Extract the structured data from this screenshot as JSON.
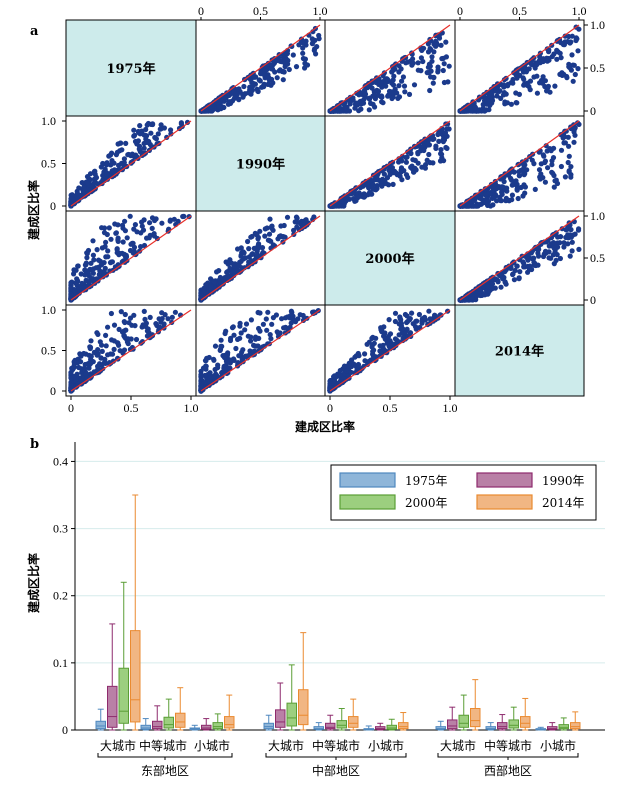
{
  "chart_data": [
    {
      "panel": "a",
      "type": "scatter",
      "ylabel": "建成区比率",
      "xlabel": "建成区比率",
      "variables": [
        "1975年",
        "1990年",
        "2000年",
        "2014年"
      ],
      "ticks": [
        "0",
        "0.5",
        "1.0"
      ],
      "tick_values": [
        0,
        0.5,
        1
      ],
      "xlim": [
        0,
        1
      ],
      "ylim": [
        0,
        1
      ],
      "colors": {
        "point": "#1b3a8c",
        "diag_bg": "#cdebeb",
        "line": "#e8302a"
      },
      "pairs_note": "matrix of pairwise scatter plots with y=x reference line"
    },
    {
      "panel": "b",
      "type": "box",
      "ylabel": "建成区比率",
      "yticks": [
        "0",
        "0.1",
        "0.2",
        "0.3",
        "0.4"
      ],
      "ytick_values": [
        0,
        0.1,
        0.2,
        0.3,
        0.4
      ],
      "ylim": [
        0,
        0.42
      ],
      "regions": [
        "东部地区",
        "中部地区",
        "西部地区"
      ],
      "categories": [
        "大城市",
        "中等城市",
        "小城市"
      ],
      "series": [
        {
          "name": "1975年",
          "color": "#4f88bf",
          "fill": "#8fb6d9"
        },
        {
          "name": "1990年",
          "color": "#8e2b6d",
          "fill": "#b980a6"
        },
        {
          "name": "2000年",
          "color": "#5a9e36",
          "fill": "#9ccf7f"
        },
        {
          "name": "2014年",
          "color": "#ea8a30",
          "fill": "#f1b683"
        }
      ],
      "legend_position": "top-right",
      "boxes": [
        [
          [
            0,
            0.002,
            0.006,
            0.013,
            0.031
          ],
          [
            0,
            0.004,
            0.02,
            0.065,
            0.158
          ],
          [
            0,
            0.01,
            0.028,
            0.092,
            0.22
          ],
          [
            0,
            0.012,
            0.045,
            0.148,
            0.35
          ]
        ],
        [
          [
            0,
            0.001,
            0.003,
            0.007,
            0.017
          ],
          [
            0,
            0.002,
            0.005,
            0.013,
            0.036
          ],
          [
            0,
            0.003,
            0.008,
            0.019,
            0.046
          ],
          [
            0,
            0.004,
            0.012,
            0.025,
            0.063
          ]
        ],
        [
          [
            0,
            0.0005,
            0.0015,
            0.003,
            0.007
          ],
          [
            0,
            0.001,
            0.003,
            0.007,
            0.017
          ],
          [
            0,
            0.002,
            0.005,
            0.011,
            0.024
          ],
          [
            0,
            0.003,
            0.008,
            0.02,
            0.052
          ]
        ],
        [
          [
            0,
            0.002,
            0.005,
            0.01,
            0.022
          ],
          [
            0,
            0.004,
            0.012,
            0.03,
            0.07
          ],
          [
            0,
            0.006,
            0.018,
            0.04,
            0.097
          ],
          [
            0,
            0.008,
            0.022,
            0.06,
            0.145
          ]
        ],
        [
          [
            0,
            0.001,
            0.002,
            0.005,
            0.011
          ],
          [
            0,
            0.002,
            0.004,
            0.01,
            0.022
          ],
          [
            0,
            0.003,
            0.007,
            0.014,
            0.032
          ],
          [
            0,
            0.004,
            0.01,
            0.02,
            0.046
          ]
        ],
        [
          [
            0,
            0.0005,
            0.001,
            0.002,
            0.006
          ],
          [
            0,
            0.001,
            0.002,
            0.005,
            0.01
          ],
          [
            0,
            0.001,
            0.003,
            0.007,
            0.016
          ],
          [
            0,
            0.002,
            0.005,
            0.011,
            0.026
          ]
        ],
        [
          [
            0,
            0.001,
            0.002,
            0.005,
            0.013
          ],
          [
            0,
            0.002,
            0.006,
            0.015,
            0.034
          ],
          [
            0,
            0.004,
            0.01,
            0.022,
            0.052
          ],
          [
            0,
            0.005,
            0.014,
            0.032,
            0.075
          ]
        ],
        [
          [
            0,
            0.001,
            0.002,
            0.005,
            0.011
          ],
          [
            0,
            0.002,
            0.005,
            0.011,
            0.023
          ],
          [
            0,
            0.003,
            0.007,
            0.015,
            0.034
          ],
          [
            0,
            0.004,
            0.01,
            0.02,
            0.047
          ]
        ],
        [
          [
            0,
            0.0005,
            0.001,
            0.002,
            0.004
          ],
          [
            0,
            0.001,
            0.002,
            0.005,
            0.011
          ],
          [
            0,
            0.002,
            0.004,
            0.008,
            0.018
          ],
          [
            0,
            0.002,
            0.005,
            0.011,
            0.027
          ]
        ]
      ]
    }
  ]
}
